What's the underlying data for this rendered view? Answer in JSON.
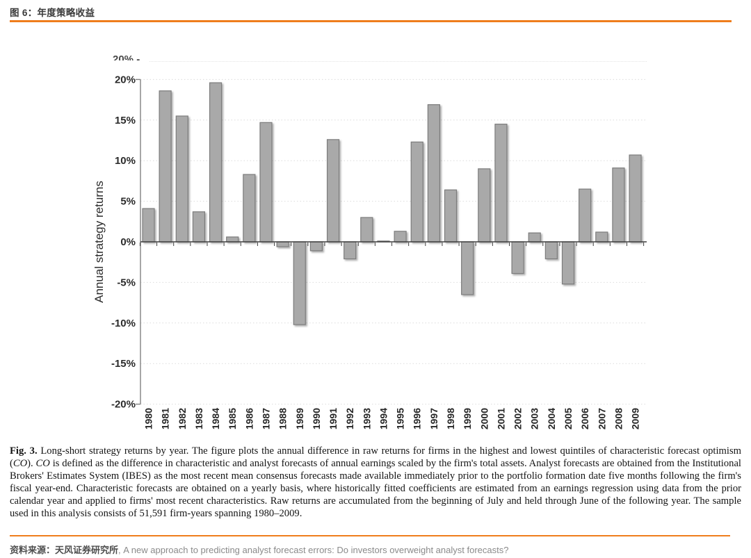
{
  "page": {
    "title": "图 6：年度策略收益",
    "accent_color": "#EF7D1C"
  },
  "source": {
    "label_cn": "资料来源：天风证券研究所",
    "text_en": ", A new approach to predicting analyst forecast errors: Do investors overweight analyst forecasts?"
  },
  "caption": {
    "lead": "Fig. 3.",
    "p1": " Long-short strategy returns by year. The figure plots the annual difference in raw returns for firms in the highest and lowest quintiles of characteristic forecast optimism (",
    "co1": "CO",
    "p2": "). ",
    "co2": "CO",
    "p3": " is defined as the difference in characteristic and analyst forecasts of annual earnings scaled by the firm's total assets. Analyst forecasts are obtained from the Institutional Brokers' Estimates System (IBES) as the most recent mean consensus forecasts made available immediately prior to the portfolio formation date five months following the firm's fiscal year-end. Characteristic forecasts are obtained on a yearly basis, where historically fitted coefficients are estimated from an earnings regression using data from the prior calendar year and applied to firms' most recent characteristics. Raw returns are accumulated from the beginning of July and held through June of the following year. The sample used in this analysis consists of 51,591 firm-years spanning 1980–2009."
  },
  "chart_data": {
    "type": "bar",
    "title": "",
    "xlabel": "",
    "ylabel": "Annual strategy returns",
    "ylim": [
      -20,
      20
    ],
    "ytick_step": 5,
    "yticks": [
      "20%",
      "15%",
      "10%",
      "5%",
      "0%",
      "-5%",
      "-10%",
      "-15%",
      "-20%"
    ],
    "grid": "horizontal-dotted",
    "legend": "none",
    "bar_color": "#A9A9A9",
    "bar_border": "#7C7C7C",
    "cropped_top_label": "20% -",
    "categories": [
      "1980",
      "1981",
      "1982",
      "1983",
      "1984",
      "1985",
      "1986",
      "1987",
      "1988",
      "1989",
      "1990",
      "1991",
      "1992",
      "1993",
      "1994",
      "1995",
      "1996",
      "1997",
      "1998",
      "1999",
      "2000",
      "2001",
      "2002",
      "2003",
      "2004",
      "2005",
      "2006",
      "2007",
      "2008",
      "2009"
    ],
    "values": [
      4.1,
      18.6,
      15.5,
      3.7,
      19.6,
      0.6,
      8.3,
      14.7,
      -0.6,
      -10.2,
      -1.1,
      12.6,
      -2.1,
      3.0,
      0.1,
      1.3,
      12.3,
      16.9,
      6.4,
      -6.5,
      9.0,
      14.5,
      -3.9,
      1.1,
      -2.1,
      -5.2,
      6.5,
      1.2,
      9.1,
      10.7
    ]
  }
}
